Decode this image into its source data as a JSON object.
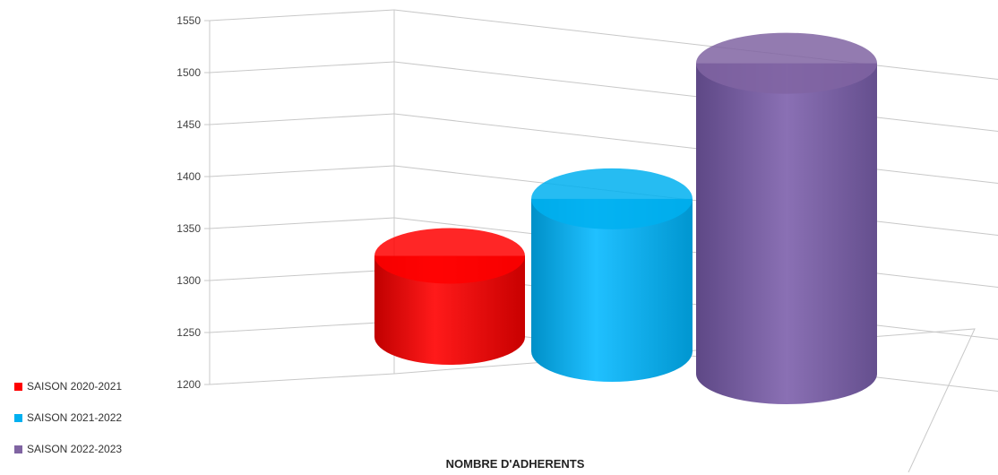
{
  "chart_data": {
    "type": "bar",
    "title": "",
    "xlabel": "NOMBRE D'ADHERENTS",
    "ylabel": "",
    "ylim": [
      1200,
      1550
    ],
    "yticks": [
      1200,
      1250,
      1300,
      1350,
      1400,
      1450,
      1500,
      1550
    ],
    "grid": true,
    "legend_position": "bottom-left",
    "categories": [
      "NOMBRE D'ADHERENTS"
    ],
    "series": [
      {
        "name": "SAISON 2020-2021",
        "values": [
          1358
        ],
        "color": "#ff0000"
      },
      {
        "name": "SAISON 2021-2022",
        "values": [
          1400
        ],
        "color": "#00b0f0"
      },
      {
        "name": "SAISON 2022-2023",
        "values": [
          1535
        ],
        "color": "#8064a2"
      }
    ]
  }
}
